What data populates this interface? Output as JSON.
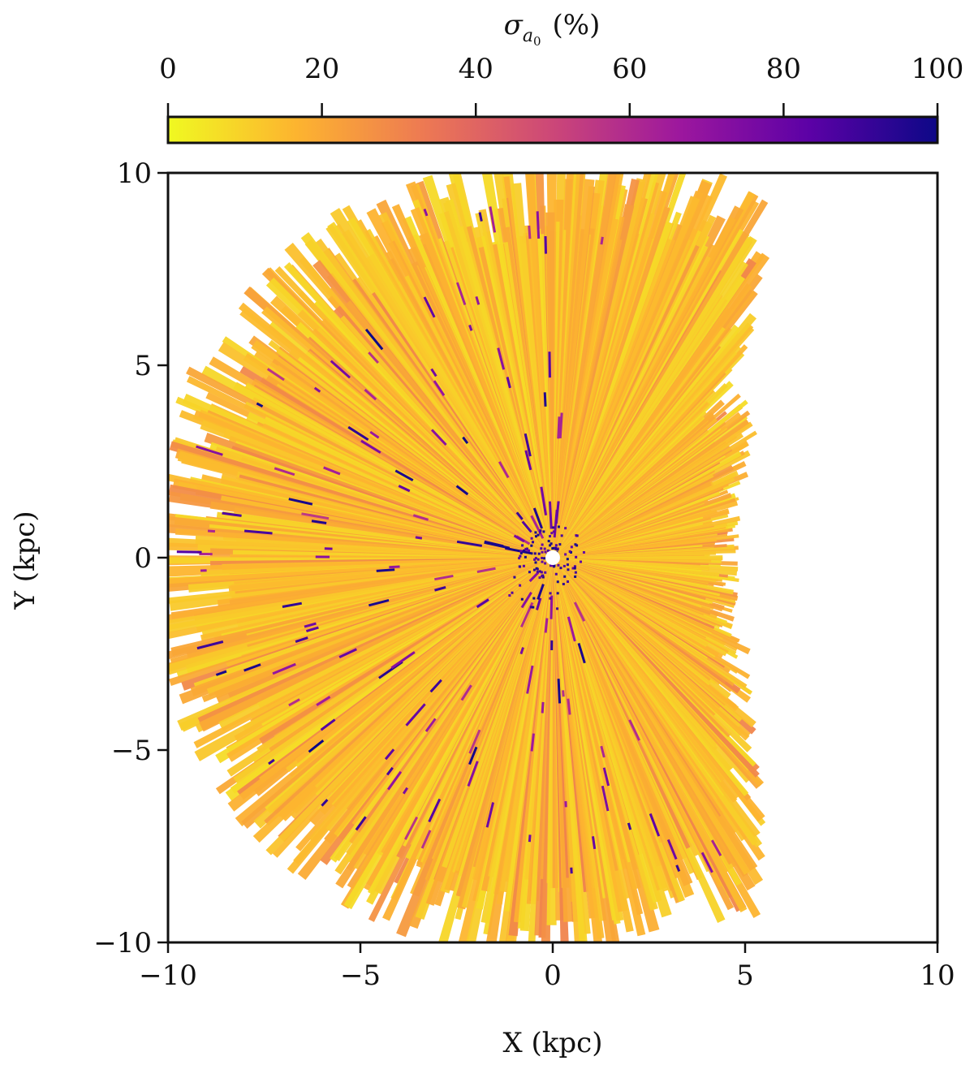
{
  "chart_data": {
    "type": "heatmap",
    "title": "",
    "xlabel": "X (kpc)",
    "ylabel": "Y (kpc)",
    "xlim": [
      -10,
      10
    ],
    "ylim": [
      -10,
      10
    ],
    "x_ticks": [
      -10,
      -5,
      0,
      5,
      10
    ],
    "y_ticks": [
      -10,
      -5,
      0,
      5,
      10
    ],
    "x_tick_labels": [
      "−10",
      "−5",
      "0",
      "5",
      "10"
    ],
    "y_tick_labels": [
      "−10",
      "−5",
      "0",
      "5",
      "10"
    ],
    "grid": false,
    "colorbar": {
      "label_symbol": "σ",
      "label_subscript": "a",
      "label_subsubscript": "0",
      "label_unit": "(%)",
      "position": "top",
      "range": [
        0,
        100
      ],
      "ticks": [
        0,
        20,
        40,
        60,
        80,
        100
      ],
      "tick_labels": [
        "0",
        "20",
        "40",
        "60",
        "80",
        "100"
      ],
      "colormap": "plasma_r",
      "colors": [
        "#f0f921",
        "#fdb42f",
        "#ed7953",
        "#cc4778",
        "#9c179e",
        "#5c01a6",
        "#0d0887"
      ]
    },
    "map": {
      "center": [
        0,
        0
      ],
      "dominant_value_percent": 15,
      "high_value_percent": 100,
      "max_extent_kpc_by_direction": [
        {
          "angle_deg": 0,
          "r": 4.5
        },
        {
          "angle_deg": 20,
          "r": 4.8
        },
        {
          "angle_deg": 30,
          "r": 5.9
        },
        {
          "angle_deg": 45,
          "r": 6.3
        },
        {
          "angle_deg": 60,
          "r": 10.5
        },
        {
          "angle_deg": 85,
          "r": 10.2
        },
        {
          "angle_deg": 95,
          "r": 10.0
        },
        {
          "angle_deg": 180,
          "r": 10.0
        },
        {
          "angle_deg": 265,
          "r": 10.0
        },
        {
          "angle_deg": 290,
          "r": 9.5
        },
        {
          "angle_deg": 300,
          "r": 10.2
        },
        {
          "angle_deg": 315,
          "r": 7.0
        },
        {
          "angle_deg": 330,
          "r": 5.5
        },
        {
          "angle_deg": 345,
          "r": 4.8
        }
      ],
      "empty_regions": [
        "upper-right wedge between X=1.5 and X=3 near Y=8-10",
        "right side beyond X≈5",
        "upper-left narrow streaks near X=-10, Y=7-9",
        "small hole at origin"
      ]
    }
  }
}
